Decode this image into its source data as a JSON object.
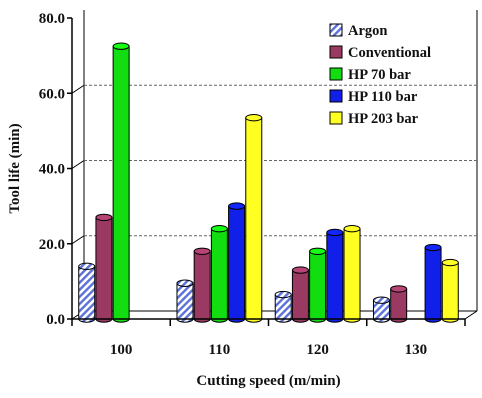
{
  "chart_data": {
    "type": "bar",
    "title": "",
    "xlabel": "Cutting speed (m/min)",
    "ylabel": "Tool life (min)",
    "ylim": [
      0,
      80
    ],
    "y_ticks": [
      "0.0",
      "20.0",
      "40.0",
      "60.0",
      "80.0"
    ],
    "categories": [
      "100",
      "110",
      "120",
      "130"
    ],
    "grid": "horizontal dashed at 20, 40, 60",
    "legend_position": "top-right",
    "series": [
      {
        "name": "Argon",
        "color": "#5b70d8",
        "pattern": "diagonal-hatch",
        "values": [
          14,
          9.5,
          6.5,
          5
        ]
      },
      {
        "name": "Conventional",
        "color": "#9a3a63",
        "values": [
          27,
          18,
          13,
          8
        ]
      },
      {
        "name": "HP 70 bar",
        "color": "#11dd11",
        "values": [
          72.5,
          24,
          18,
          null
        ]
      },
      {
        "name": "HP 110 bar",
        "color": "#1020e8",
        "values": [
          null,
          30,
          23,
          19
        ]
      },
      {
        "name": "HP 203 bar",
        "color": "#ffff22",
        "values": [
          null,
          53.5,
          24,
          15
        ]
      }
    ]
  }
}
